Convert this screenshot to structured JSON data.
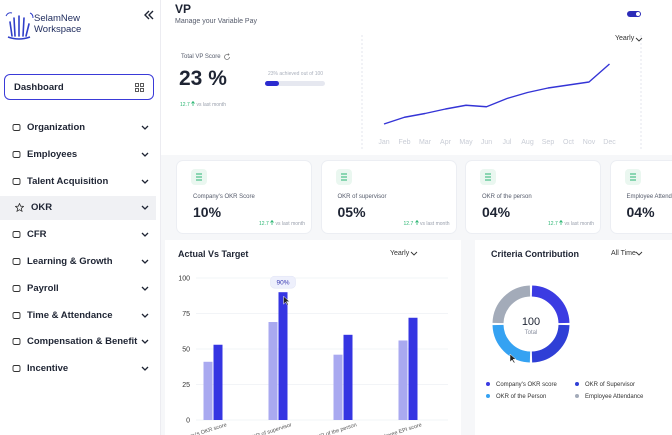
{
  "sidebar": {
    "brand": [
      "SelamNew",
      "Workspace"
    ],
    "active": "Dashboard",
    "menu": [
      "Organization",
      "Employees",
      "Talent Acquisition",
      "OKR",
      "CFR",
      "Learning & Growth",
      "Payroll",
      "Time & Attendance",
      "Compensation & Benefit",
      "Incentive"
    ]
  },
  "header": {
    "title": "VP",
    "subtitle": "Manage your Variable Pay"
  },
  "vp_score": {
    "label": "Total VP Score",
    "score": "23 %",
    "progress_label": "23% achieved out of 100",
    "progress": 23,
    "progress_max": 100,
    "change": "12.7",
    "change_note": "vs last month"
  },
  "kpi_cards": [
    {
      "label": "Company's OKR Score",
      "value": "10%",
      "change": "12.7",
      "change_note": "vs last month"
    },
    {
      "label": "OKR of supervisor",
      "value": "05%",
      "change": "12.7",
      "change_note": "vs last month"
    },
    {
      "label": "OKR of the person",
      "value": "04%",
      "change": "12.7",
      "change_note": "vs last month"
    },
    {
      "label": "Employee Attendance",
      "value": "04%",
      "change": "12.7",
      "change_note": "vs last month"
    }
  ],
  "chart_data": [
    {
      "type": "line",
      "period": "Yearly",
      "categories": [
        "Jan",
        "Feb",
        "Mar",
        "Apr",
        "May",
        "Jun",
        "Jul",
        "Aug",
        "Sep",
        "Oct",
        "Nov",
        "Dec"
      ],
      "values": [
        8,
        17,
        22,
        28,
        33,
        31,
        42,
        50,
        56,
        60,
        64,
        88
      ],
      "ylim": [
        0,
        100
      ],
      "color": "#3434d6"
    },
    {
      "type": "bar",
      "title": "Actual Vs Target",
      "period": "Yearly",
      "categories": [
        "Company's OKR score",
        "OKR of supervisor",
        "OKR of the person",
        "Employee EPI score"
      ],
      "series": [
        {
          "color": "#a9a9f0",
          "values": [
            41,
            69,
            46,
            56
          ]
        },
        {
          "color": "#3535e2",
          "values": [
            53,
            90,
            60,
            72
          ],
          "value_labels": [
            null,
            "90%",
            null,
            null
          ]
        }
      ],
      "ylim": [
        0,
        100
      ],
      "yticks": [
        0,
        25,
        50,
        75,
        100
      ],
      "grid": true
    },
    {
      "type": "pie",
      "title": "Criteria Contribution",
      "period": "All Time",
      "total": "100",
      "total_label": "Total",
      "categories": [
        "Company's OKR score",
        "OKR of Supervisor",
        "OKR of the Person",
        "Employee Attendance"
      ],
      "values": [
        25,
        25,
        25,
        25
      ],
      "colors": [
        "#3b3be2",
        "#2f3fd6",
        "#35a2f2",
        "#a3abb9"
      ]
    }
  ]
}
